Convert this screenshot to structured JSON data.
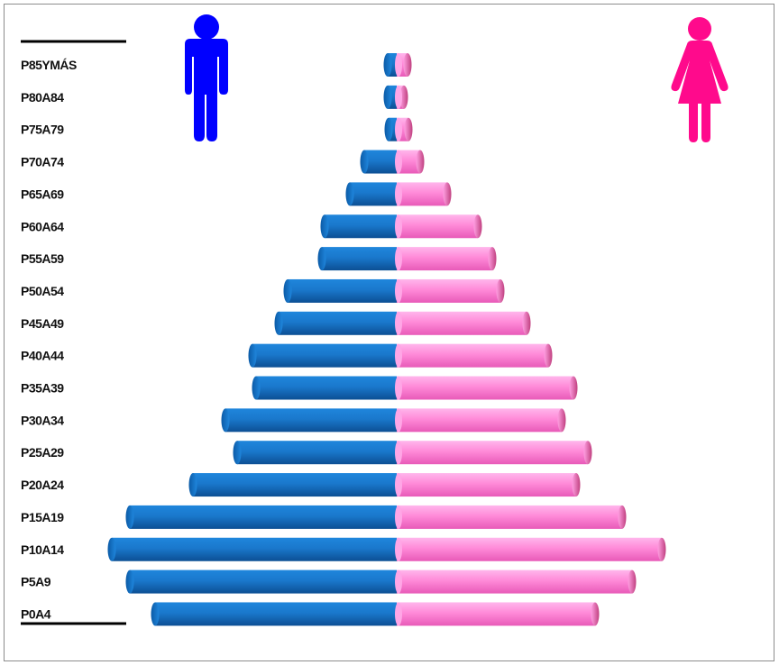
{
  "chart_data": {
    "type": "bar",
    "orientation": "horizontal",
    "title": "",
    "xlabel": "",
    "ylabel": "",
    "grid": false,
    "legend": "none",
    "categories": [
      "P0A4",
      "P5A9",
      "P10A14",
      "P15A19",
      "P20A24",
      "P25A29",
      "P30A34",
      "P35A39",
      "P40A44",
      "P45A49",
      "P50A54",
      "P55A59",
      "P60A64",
      "P65A69",
      "P70A74",
      "P75A79",
      "P80A84",
      "P85YMÁS"
    ],
    "category_labels": [
      "P0A4",
      "P5A9",
      "P10A14",
      "P15A19",
      "P20A24",
      "P25A29",
      "P30A34",
      "P35A39",
      "P40A44",
      "P45A49",
      "P50A54",
      "P55A59",
      "P60A64",
      "P65A69",
      "P70A74",
      "P75A79",
      "P80A84",
      "P85YMÁS"
    ],
    "series": [
      {
        "name": "",
        "side": "left",
        "color": "#1673c5",
        "values": [
          272,
          300,
          320,
          300,
          230,
          181,
          194,
          160,
          164,
          135,
          125,
          87,
          84,
          56,
          40,
          13,
          14,
          14
        ]
      },
      {
        "name": "",
        "side": "right",
        "color": "#ff8ad8",
        "values": [
          224,
          265,
          298,
          254,
          203,
          216,
          187,
          200,
          172,
          148,
          119,
          110,
          94,
          60,
          30,
          17,
          12,
          16
        ]
      }
    ],
    "xlim": [
      -320,
      320
    ],
    "icons": {
      "left": "male-figure-icon",
      "right": "female-figure-icon"
    },
    "colors": {
      "male_icon": "#0000ff",
      "female_icon": "#ff0a8c"
    }
  }
}
